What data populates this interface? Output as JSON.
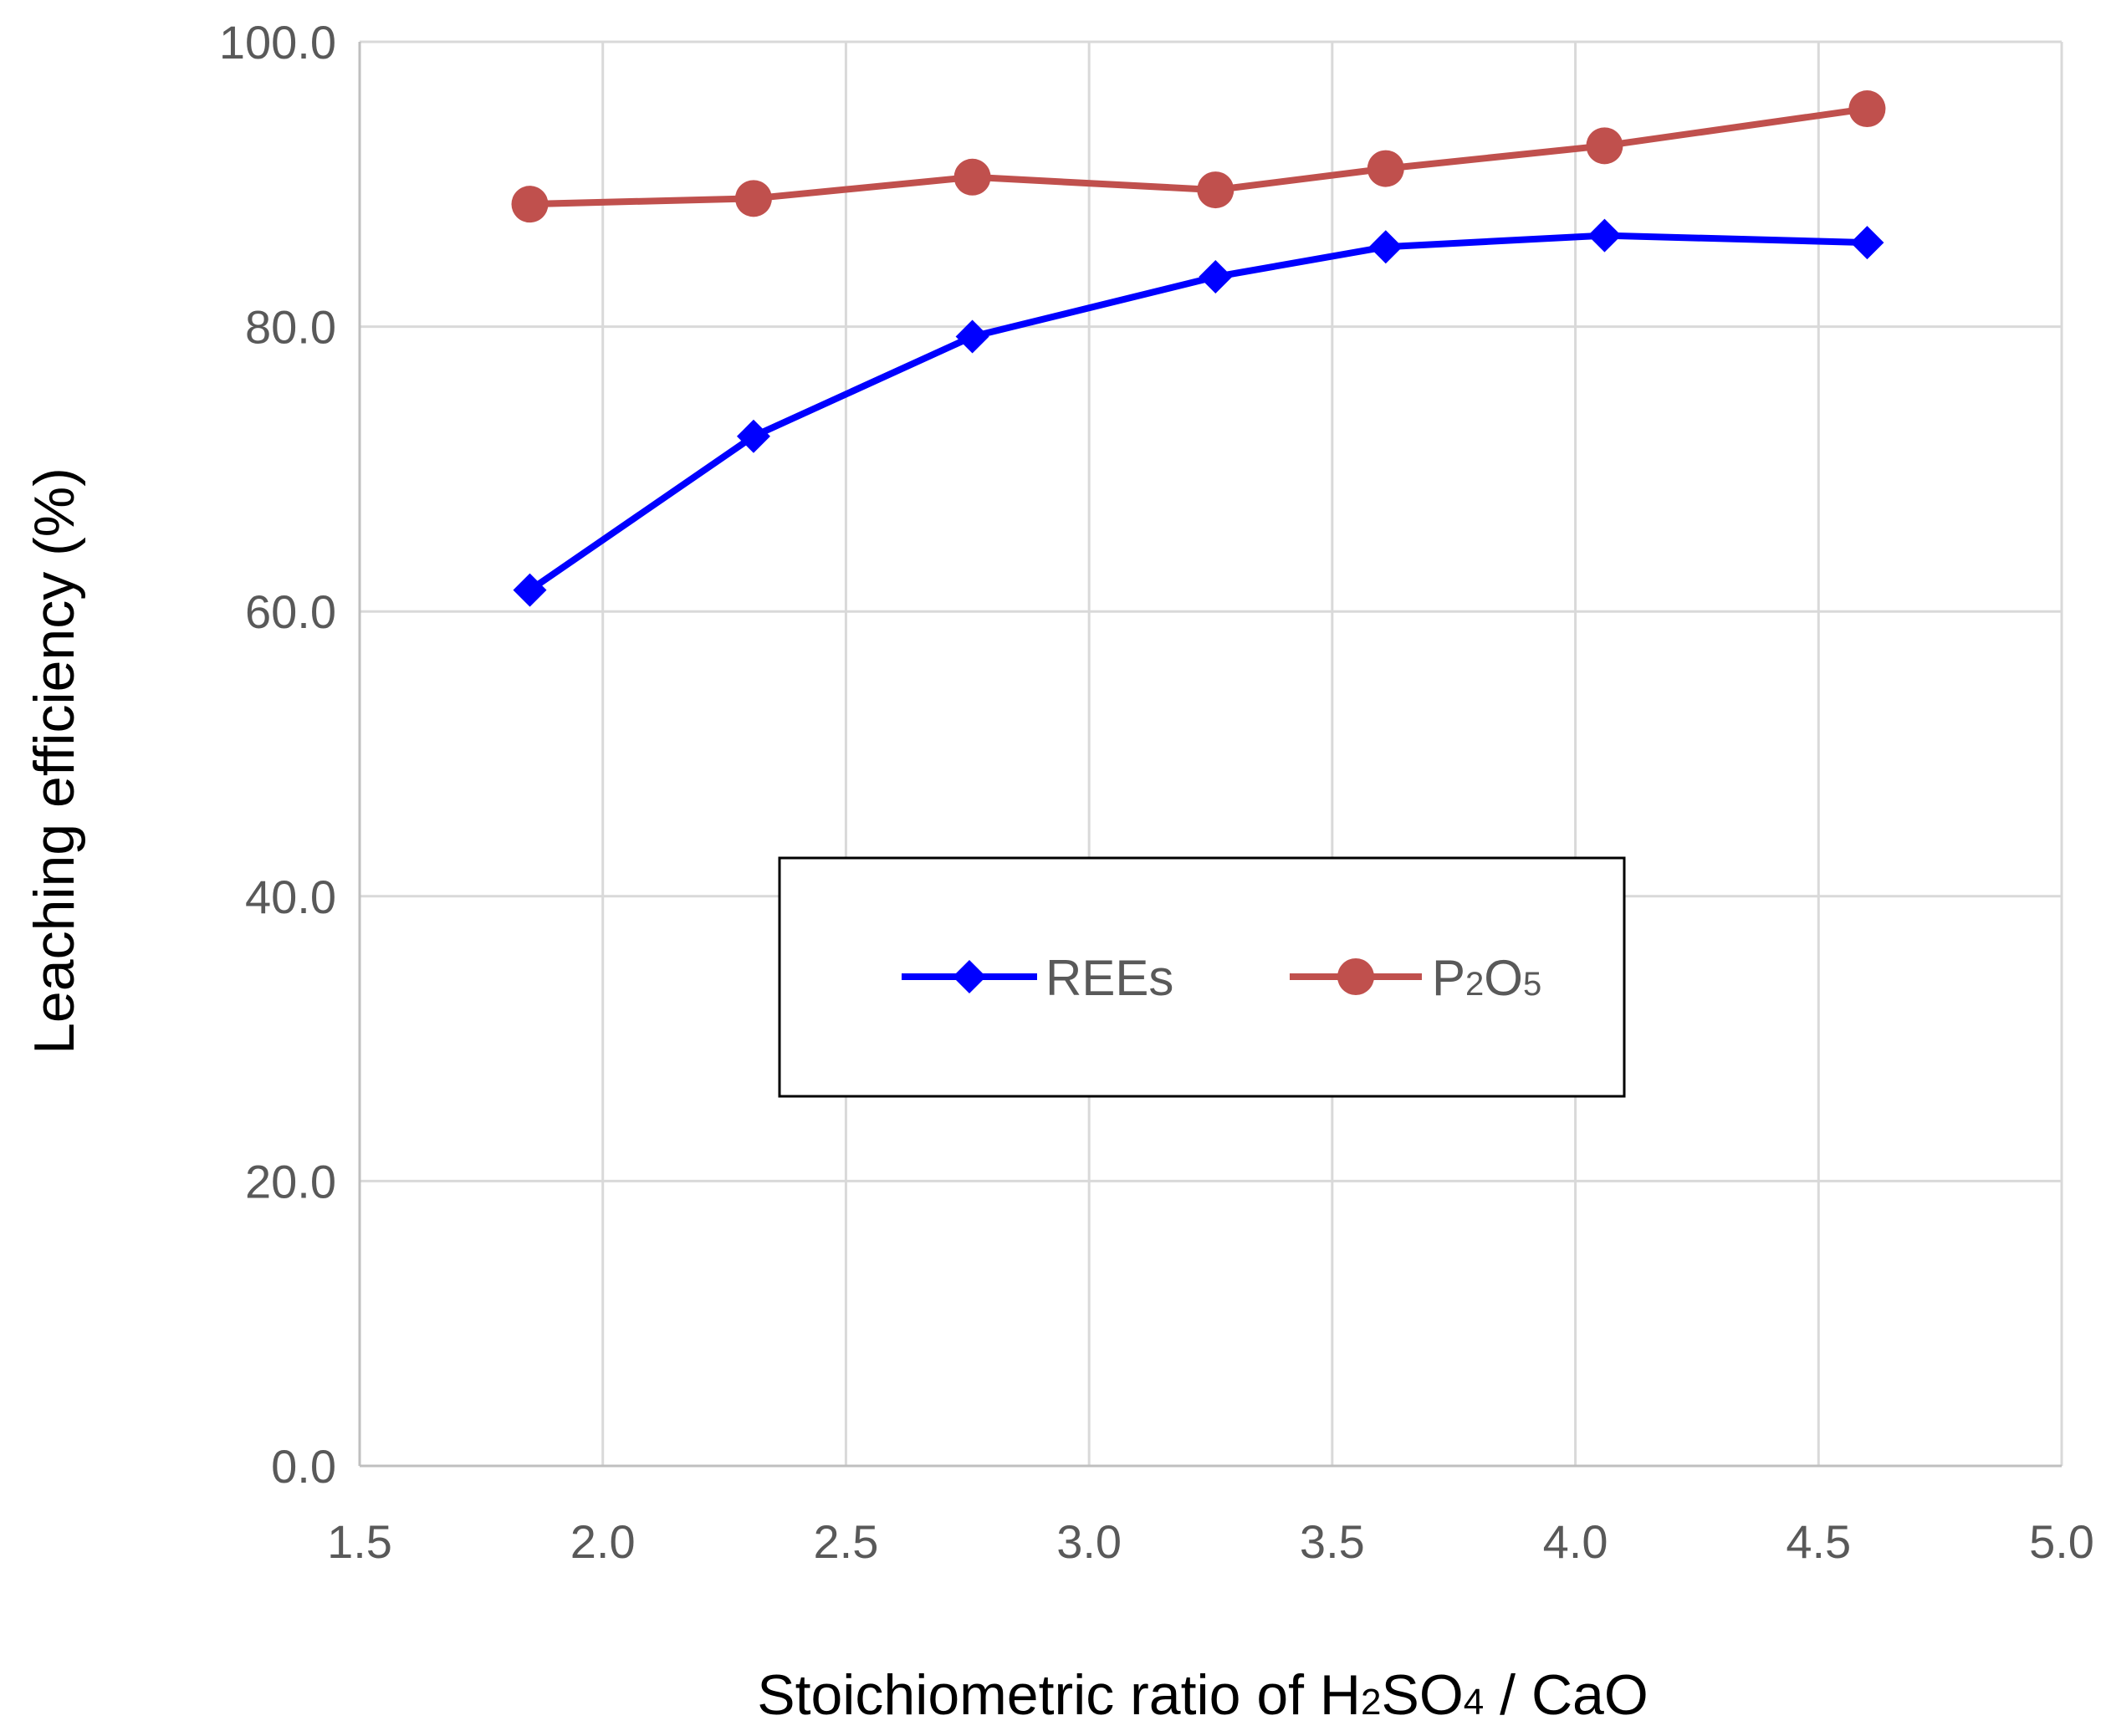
{
  "chart_data": {
    "type": "line",
    "title": "",
    "xlabel": {
      "pre": "Stoichiometric ratio of H",
      "sub1": "2",
      "mid": "SO",
      "sub2": "4",
      "post": " / CaO"
    },
    "ylabel": "Leaching efficiency (%)",
    "xlim": [
      1.5,
      5.0
    ],
    "ylim": [
      0,
      100
    ],
    "x_ticks": [
      "1.5",
      "2.0",
      "2.5",
      "3.0",
      "3.5",
      "4.0",
      "4.5",
      "5.0"
    ],
    "y_ticks": [
      "0.0",
      "20.0",
      "40.0",
      "60.0",
      "80.0",
      "100.0"
    ],
    "grid": true,
    "legend_position": "center",
    "series": [
      {
        "name": "REEs",
        "label": "REEs",
        "color": "#0000FF",
        "marker": "diamond",
        "x": [
          1.85,
          2.31,
          2.76,
          3.26,
          3.61,
          4.06,
          4.6
        ],
        "y": [
          61.5,
          72.3,
          79.3,
          83.5,
          85.6,
          86.4,
          85.9
        ]
      },
      {
        "name": "P2O5",
        "label": {
          "pre": "P",
          "sub1": "2",
          "mid": "O",
          "sub2": "5"
        },
        "color": "#C0504D",
        "marker": "circle",
        "x": [
          1.85,
          2.31,
          2.76,
          3.26,
          3.61,
          4.06,
          4.6
        ],
        "y": [
          88.6,
          89.0,
          90.5,
          89.6,
          91.1,
          92.7,
          95.3
        ]
      }
    ]
  }
}
